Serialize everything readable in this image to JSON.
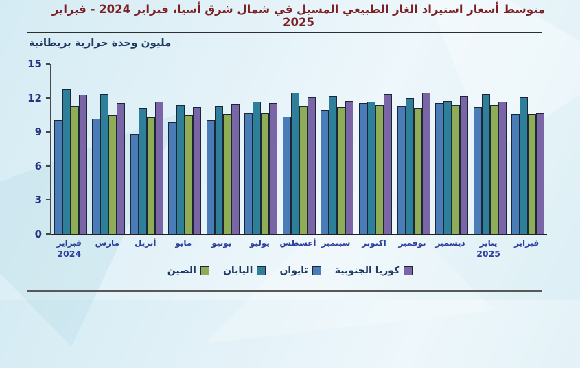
{
  "title": "متوسط أسعار استيراد الغاز الطبيعي المسيل في شمال شرق أسيا، فبراير 2024 - فبراير 2025",
  "chart_data": {
    "type": "bar",
    "title": "متوسط أسعار استيراد الغاز الطبيعي المسيل في شمال شرق أسيا، فبراير 2024 - فبراير 2025",
    "ylabel": "مليون وحدة حرارية بريطانية",
    "xlabel": "",
    "ylim": [
      0,
      15
    ],
    "yticks": [
      0,
      3,
      6,
      9,
      12,
      15
    ],
    "grid": false,
    "legend_position": "bottom",
    "categories": [
      {
        "label": "فبراير",
        "year": "2024"
      },
      {
        "label": "مارس",
        "year": ""
      },
      {
        "label": "أبريل",
        "year": ""
      },
      {
        "label": "مايو",
        "year": ""
      },
      {
        "label": "يونيو",
        "year": ""
      },
      {
        "label": "يوليو",
        "year": ""
      },
      {
        "label": "أغسطس",
        "year": ""
      },
      {
        "label": "سبتمبر",
        "year": ""
      },
      {
        "label": "اكتوبر",
        "year": ""
      },
      {
        "label": "نوفمبر",
        "year": ""
      },
      {
        "label": "ديسمبر",
        "year": ""
      },
      {
        "label": "يناير",
        "year": "2025"
      },
      {
        "label": "فبراير",
        "year": ""
      }
    ],
    "series": [
      {
        "name": "تايوان",
        "color": "#4a7cb8",
        "values": [
          10.0,
          10.1,
          8.8,
          9.8,
          10.0,
          10.6,
          10.3,
          10.9,
          11.5,
          11.2,
          11.5,
          11.1,
          10.5
        ]
      },
      {
        "name": "اليابان",
        "color": "#2e7f99",
        "values": [
          12.7,
          12.3,
          11.0,
          11.3,
          11.2,
          11.6,
          12.4,
          12.1,
          11.6,
          11.9,
          11.7,
          12.3,
          12.0
        ]
      },
      {
        "name": "الصين",
        "color": "#8fad56",
        "values": [
          11.2,
          10.4,
          10.2,
          10.4,
          10.5,
          10.6,
          11.2,
          11.1,
          11.3,
          11.0,
          11.3,
          11.3,
          10.5
        ]
      },
      {
        "name": "كوريا الجنوبية",
        "color": "#7a66a6",
        "values": [
          12.2,
          11.5,
          11.6,
          11.1,
          11.4,
          11.5,
          12.0,
          11.7,
          12.3,
          12.4,
          12.1,
          11.6,
          10.6
        ]
      }
    ],
    "legend_display_order": [
      {
        "label": "الصين",
        "color": "#8fad56"
      },
      {
        "label": "اليابان",
        "color": "#2e7f99"
      },
      {
        "label": "تايوان",
        "color": "#4a7cb8"
      },
      {
        "label": "كوريا الجنوبية",
        "color": "#7a66a6"
      }
    ]
  },
  "colors": {
    "title": "#7b2125",
    "axis_text": "#26357f",
    "month_text": "#2d3f9e",
    "legend_text": "#1f3864",
    "bar_outline": "#1c2636",
    "background": "#e0f0f6"
  }
}
